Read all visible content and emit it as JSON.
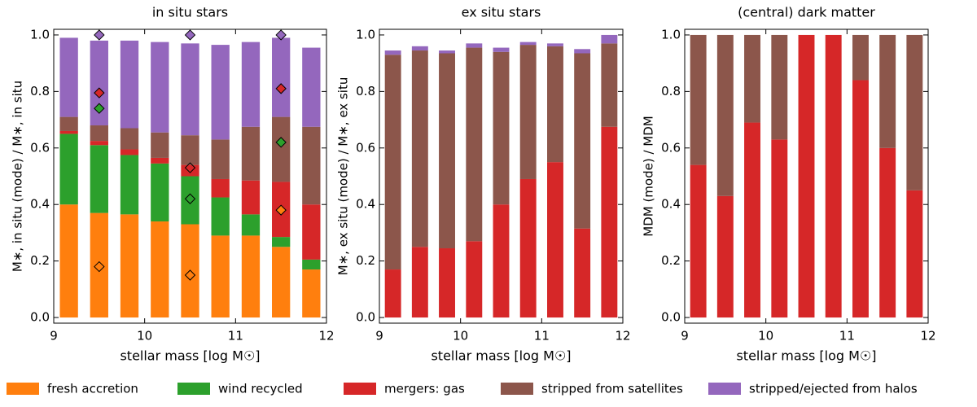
{
  "chart_data": [
    {
      "type": "stacked-bar",
      "title": "in situ stars",
      "xlabel": "stellar mass [log M☉]",
      "ylabel": "M∗, in situ (mode) / M∗, in situ",
      "x": [
        9.167,
        9.5,
        9.833,
        10.167,
        10.5,
        10.833,
        11.167,
        11.5,
        11.833
      ],
      "xlim": [
        9,
        12
      ],
      "xticks": [
        9,
        10,
        11,
        12
      ],
      "ylim": [
        -0.02,
        1.02
      ],
      "yticks": [
        {
          "value": 0,
          "label": "0.0"
        },
        {
          "value": 0.2,
          "label": "0.2"
        },
        {
          "value": 0.4,
          "label": "0.4"
        },
        {
          "value": 0.6,
          "label": "0.6"
        },
        {
          "value": 0.8,
          "label": "0.8"
        },
        {
          "value": 1,
          "label": "1.0"
        }
      ],
      "series": [
        {
          "color": "#ff7f0e",
          "values": [
            0.4,
            0.37,
            0.365,
            0.34,
            0.33,
            0.29,
            0.29,
            0.25,
            0.17
          ]
        },
        {
          "color": "#2ca02c",
          "values": [
            0.25,
            0.24,
            0.21,
            0.205,
            0.17,
            0.135,
            0.075,
            0.035,
            0.035
          ]
        },
        {
          "color": "#d62728",
          "values": [
            0.01,
            0.015,
            0.02,
            0.02,
            0.04,
            0.065,
            0.12,
            0.195,
            0.195
          ]
        },
        {
          "color": "#8c564b",
          "values": [
            0.05,
            0.055,
            0.075,
            0.09,
            0.105,
            0.14,
            0.19,
            0.23,
            0.275
          ]
        },
        {
          "color": "#9467bd",
          "values": [
            0.28,
            0.3,
            0.31,
            0.32,
            0.325,
            0.335,
            0.3,
            0.28,
            0.28
          ]
        }
      ],
      "points": {
        "x": [
          9.5,
          9.5,
          9.5,
          9.5,
          10.5,
          10.5,
          10.5,
          10.5,
          11.5,
          11.5,
          11.5,
          11.5
        ],
        "y": [
          1.0,
          0.795,
          0.74,
          0.18,
          1.0,
          0.53,
          0.42,
          0.15,
          1.0,
          0.81,
          0.62,
          0.38
        ],
        "colors": [
          "#9467bd",
          "#d62728",
          "#2ca02c",
          "none",
          "#9467bd",
          "none",
          "none",
          "none",
          "#9467bd",
          "#d62728",
          "#2ca02c",
          "#ff7f0e"
        ]
      }
    },
    {
      "type": "stacked-bar",
      "title": "ex situ stars",
      "xlabel": "stellar mass [log M☉]",
      "ylabel": "M∗, ex situ (mode) / M∗, ex situ",
      "x": [
        9.167,
        9.5,
        9.833,
        10.167,
        10.5,
        10.833,
        11.167,
        11.5,
        11.833
      ],
      "xlim": [
        9,
        12
      ],
      "xticks": [
        9,
        10,
        11,
        12
      ],
      "ylim": [
        -0.02,
        1.02
      ],
      "yticks": [
        {
          "value": 0,
          "label": "0.0"
        },
        {
          "value": 0.2,
          "label": "0.2"
        },
        {
          "value": 0.4,
          "label": "0.4"
        },
        {
          "value": 0.6,
          "label": "0.6"
        },
        {
          "value": 0.8,
          "label": "0.8"
        },
        {
          "value": 1,
          "label": "1.0"
        }
      ],
      "series": [
        {
          "color": "#d62728",
          "values": [
            0.17,
            0.25,
            0.245,
            0.27,
            0.4,
            0.49,
            0.55,
            0.315,
            0.675
          ]
        },
        {
          "color": "#8c564b",
          "values": [
            0.76,
            0.695,
            0.69,
            0.685,
            0.54,
            0.475,
            0.41,
            0.62,
            0.295
          ]
        },
        {
          "color": "#9467bd",
          "values": [
            0.015,
            0.015,
            0.01,
            0.015,
            0.015,
            0.01,
            0.01,
            0.015,
            0.03
          ]
        }
      ]
    },
    {
      "type": "stacked-bar",
      "title": "(central) dark matter",
      "xlabel": "stellar mass [log M☉]",
      "ylabel": "MDM (mode) / MDM",
      "x": [
        9.167,
        9.5,
        9.833,
        10.167,
        10.5,
        10.833,
        11.167,
        11.5,
        11.833
      ],
      "xlim": [
        9,
        12
      ],
      "xticks": [
        9,
        10,
        11,
        12
      ],
      "ylim": [
        -0.02,
        1.02
      ],
      "yticks": [
        {
          "value": 0,
          "label": "0.0"
        },
        {
          "value": 0.2,
          "label": "0.2"
        },
        {
          "value": 0.4,
          "label": "0.4"
        },
        {
          "value": 0.6,
          "label": "0.6"
        },
        {
          "value": 0.8,
          "label": "0.8"
        },
        {
          "value": 1,
          "label": "1.0"
        }
      ],
      "series": [
        {
          "color": "#d62728",
          "values": [
            0.54,
            0.43,
            0.69,
            0.63,
            1.0,
            1.0,
            0.84,
            0.6,
            0.45
          ]
        },
        {
          "color": "#8c564b",
          "values": [
            0.46,
            0.57,
            0.31,
            0.37,
            0,
            0,
            0.16,
            0.4,
            0.55
          ]
        }
      ]
    }
  ],
  "legend": [
    {
      "name": "fresh accretion",
      "color": "#ff7f0e"
    },
    {
      "name": "wind recycled",
      "color": "#2ca02c"
    },
    {
      "name": "mergers: gas",
      "color": "#d62728"
    },
    {
      "name": "stripped from satellites",
      "color": "#8c564b"
    },
    {
      "name": "stripped/ejected from halos",
      "color": "#9467bd"
    }
  ]
}
